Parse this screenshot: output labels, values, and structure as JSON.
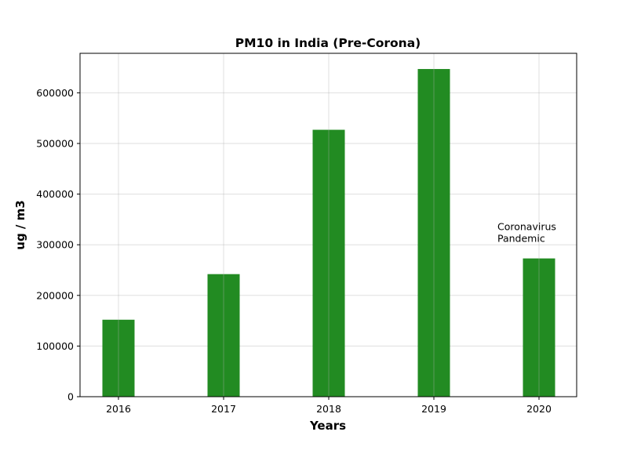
{
  "chart_data": {
    "type": "bar",
    "title": "PM10 in India (Pre-Corona)",
    "xlabel": "Years",
    "ylabel": "ug / m3",
    "categories": [
      "2016",
      "2017",
      "2018",
      "2019",
      "2020"
    ],
    "values": [
      152000,
      242000,
      527000,
      647000,
      273000
    ],
    "ylim": [
      0,
      678000
    ],
    "yticks": [
      0,
      100000,
      200000,
      300000,
      400000,
      500000,
      600000
    ],
    "ytick_labels": [
      "0",
      "100000",
      "200000",
      "300000",
      "400000",
      "500000",
      "600000"
    ],
    "bar_color": "#228b22",
    "grid": true,
    "annotation": {
      "lines": [
        "Coronavirus",
        "Pandemic"
      ],
      "category": "2020",
      "value": 310000
    }
  }
}
